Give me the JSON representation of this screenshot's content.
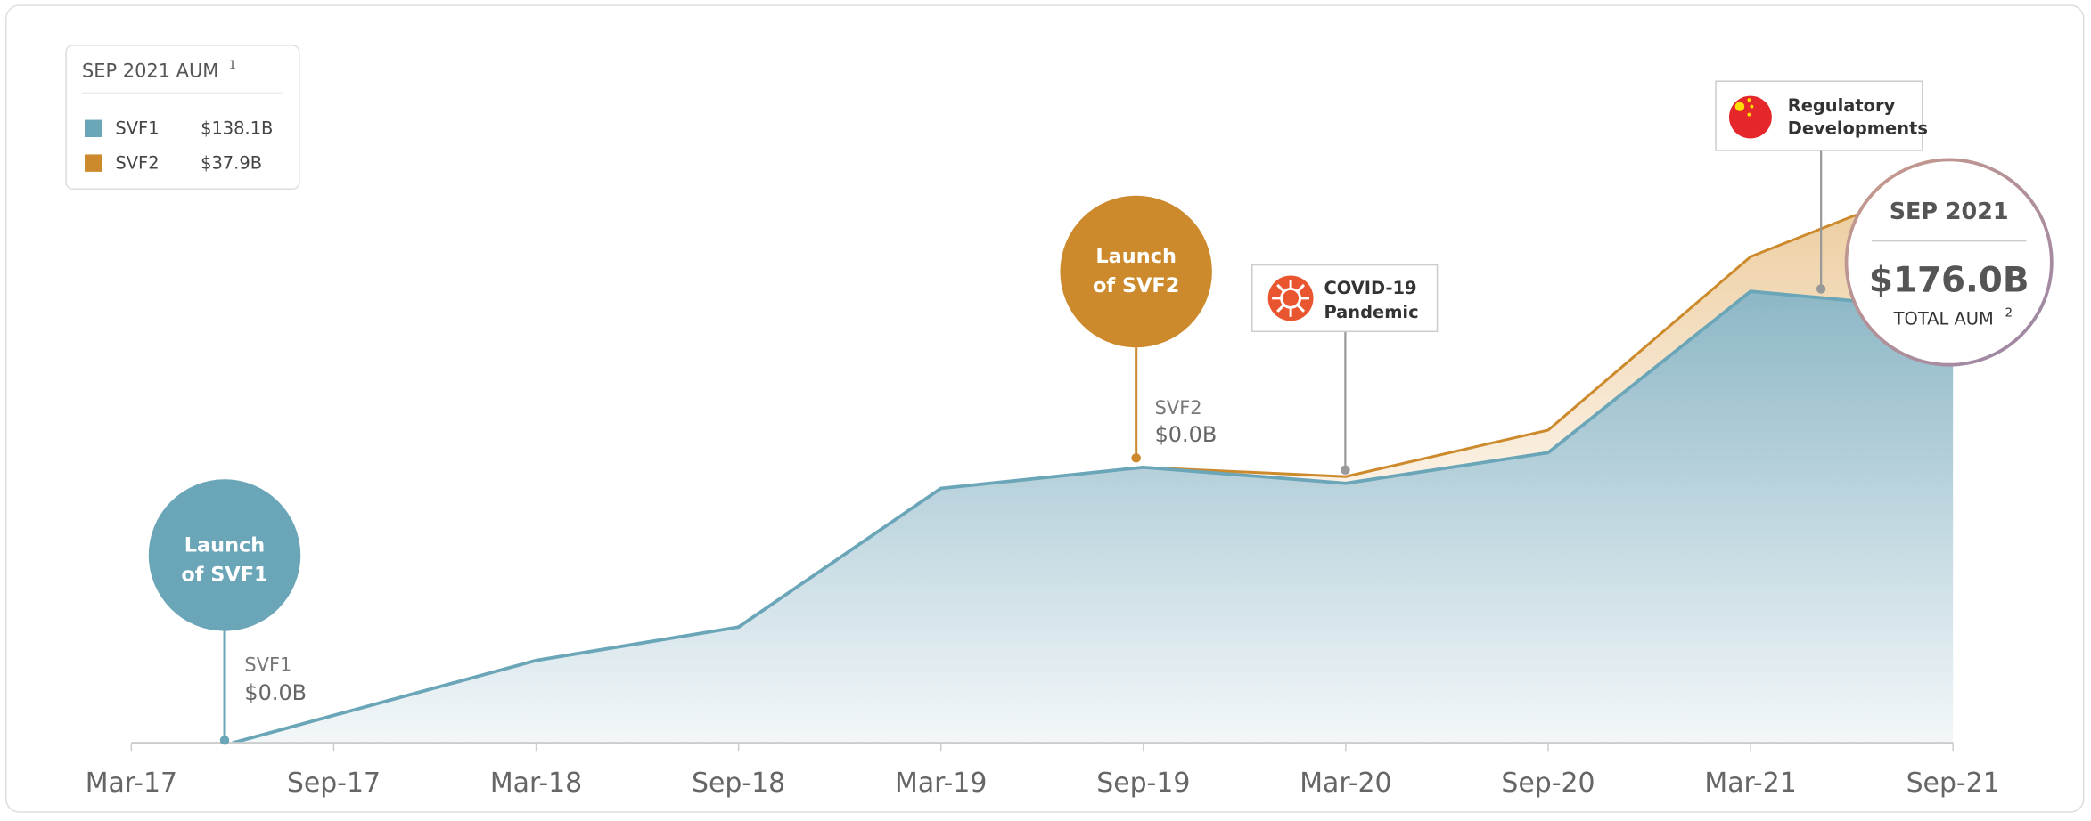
{
  "chart_data": {
    "type": "stacked_area",
    "x": [
      "Jun-17",
      "Mar-18",
      "Sep-18",
      "Mar-19",
      "Sep-19",
      "Mar-20",
      "Sep-20",
      "Mar-21",
      "Jun-21",
      "Sep-21"
    ],
    "series": [
      {
        "name": "SVF1",
        "color": "#6aa5b8",
        "values": [
          0,
          25.9,
          36.4,
          80,
          86.6,
          81.6,
          91.2,
          141.9,
          139,
          138.1
        ],
        "legend_value": "$138.1B"
      },
      {
        "name": "SVF2",
        "color": "#cc8a2c",
        "values": [
          null,
          null,
          null,
          null,
          0,
          2.1,
          7.1,
          10.9,
          26.4,
          37.9
        ],
        "legend_value": "$37.9B"
      }
    ],
    "xticks": [
      "Mar-17",
      "Sep-17",
      "Mar-18",
      "Sep-18",
      "Mar-19",
      "Sep-19",
      "Mar-20",
      "Sep-20",
      "Mar-21",
      "Sep-21"
    ],
    "ylim": [
      0,
      200
    ],
    "legend_title": "SEP 2021 AUM",
    "legend_note": "1",
    "annotations": {
      "svf1_launch": [
        "Launch",
        "of SVF1"
      ],
      "svf1_start": [
        "SVF1",
        "$0.0B"
      ],
      "svf2_launch": [
        "Launch",
        "of SVF2"
      ],
      "svf2_start": [
        "SVF2",
        "$0.0B"
      ],
      "covid": [
        "COVID-19",
        "Pandemic"
      ],
      "regulatory": [
        "Regulatory",
        "Developments"
      ],
      "total": {
        "title": "SEP 2021",
        "value": "$176.0B",
        "label": "TOTAL AUM",
        "note": "2"
      }
    }
  }
}
